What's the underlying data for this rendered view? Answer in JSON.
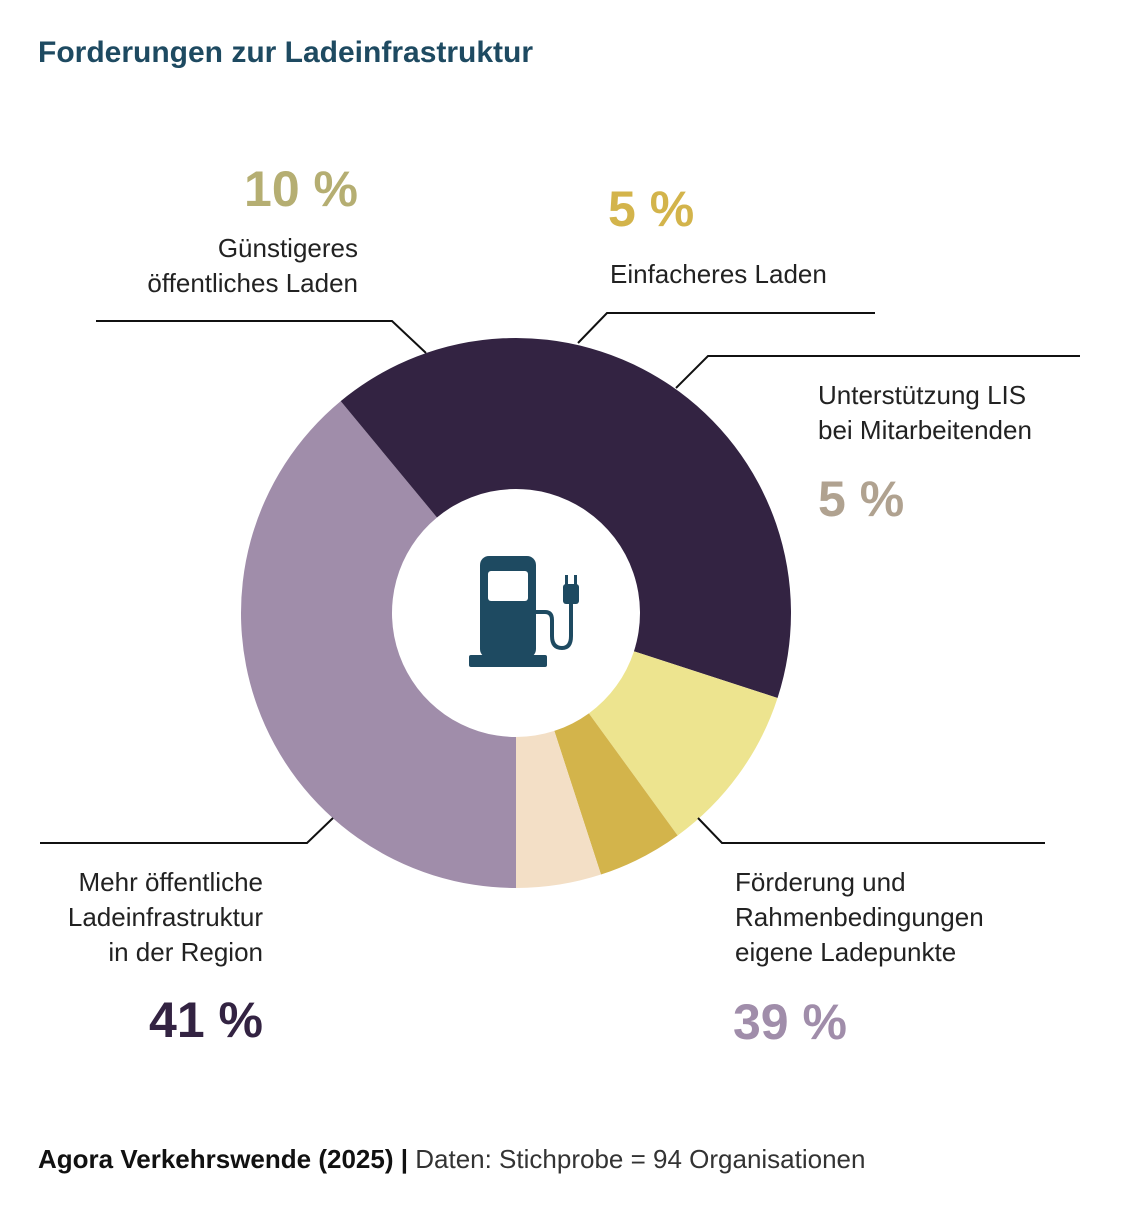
{
  "chart_data": {
    "type": "pie",
    "title": "Forderungen zur Ladeinfrastruktur",
    "variant": "donut",
    "slices": [
      {
        "label": "Förderung und\nRahmenbedingungen\neigene Ladepunkte",
        "value": 39,
        "value_label": "39 %",
        "color": "#a08daa"
      },
      {
        "label": "Mehr öffentliche\nLadeinfrastruktur\nin der Region",
        "value": 41,
        "value_label": "41 %",
        "color": "#332342"
      },
      {
        "label": "Günstigeres\nöffentliches Laden",
        "value": 10,
        "value_label": "10 %",
        "color": "#ede48f"
      },
      {
        "label": "Einfacheres Laden",
        "value": 5,
        "value_label": "5 %",
        "color": "#d3b44b"
      },
      {
        "label": "Unterstützung LIS\nbei Mitarbeitenden",
        "value": 5,
        "value_label": "5 %",
        "color": "#f3dfc6"
      }
    ],
    "value_label_colors": [
      "#a08daa",
      "#332342",
      "#b5ae72",
      "#d3b44b",
      "#b0a290"
    ],
    "center_icon": "charging-station-icon",
    "icon_color": "#1e4a61"
  },
  "source": {
    "bold": "Agora Verkehrswende (2025)",
    "separator": " | ",
    "text": "Daten: Stichprobe = 94 Organisationen"
  }
}
